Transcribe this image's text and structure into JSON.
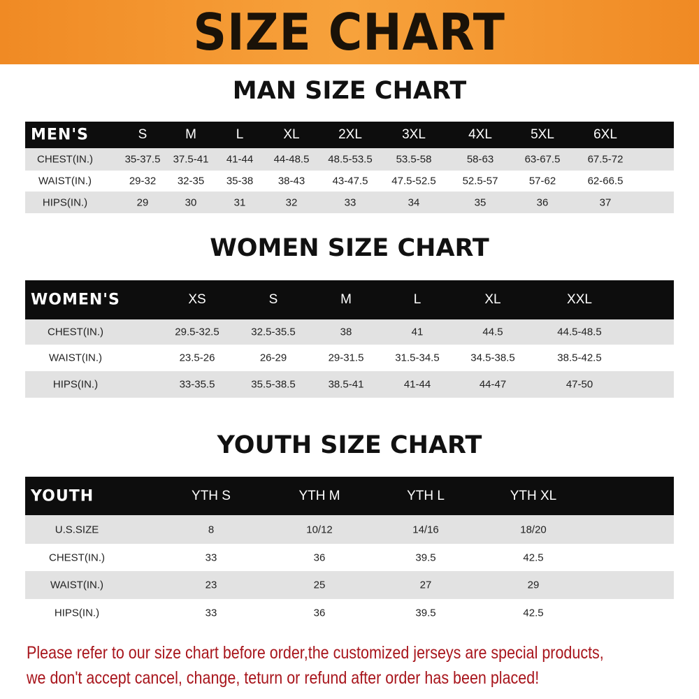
{
  "banner_title": "SIZE CHART",
  "men": {
    "title": "MAN SIZE CHART",
    "header": [
      "MEN'S",
      "S",
      "M",
      "L",
      "XL",
      "2XL",
      "3XL",
      "4XL",
      "5XL",
      "6XL"
    ],
    "rows": [
      [
        "CHEST(IN.)",
        "35-37.5",
        "37.5-41",
        "41-44",
        "44-48.5",
        "48.5-53.5",
        "53.5-58",
        "58-63",
        "63-67.5",
        "67.5-72"
      ],
      [
        "WAIST(IN.)",
        "29-32",
        "32-35",
        "35-38",
        "38-43",
        "43-47.5",
        "47.5-52.5",
        "52.5-57",
        "57-62",
        "62-66.5"
      ],
      [
        "HIPS(IN.)",
        "29",
        "30",
        "31",
        "32",
        "33",
        "34",
        "35",
        "36",
        "37"
      ]
    ]
  },
  "women": {
    "title": "WOMEN SIZE CHART",
    "header": [
      "WOMEN'S",
      "XS",
      "S",
      "M",
      "L",
      "XL",
      "XXL"
    ],
    "rows": [
      [
        "CHEST(IN.)",
        "29.5-32.5",
        "32.5-35.5",
        "38",
        "41",
        "44.5",
        "44.5-48.5"
      ],
      [
        "WAIST(IN.)",
        "23.5-26",
        "26-29",
        "29-31.5",
        "31.5-34.5",
        "34.5-38.5",
        "38.5-42.5"
      ],
      [
        "HIPS(IN.)",
        "33-35.5",
        "35.5-38.5",
        "38.5-41",
        "41-44",
        "44-47",
        "47-50"
      ]
    ]
  },
  "youth": {
    "title": "YOUTH SIZE CHART",
    "header": [
      "YOUTH",
      "YTH S",
      "YTH M",
      "YTH L",
      "YTH XL"
    ],
    "rows": [
      [
        "U.S.SIZE",
        "8",
        "10/12",
        "14/16",
        "18/20"
      ],
      [
        "CHEST(IN.)",
        "33",
        "36",
        "39.5",
        "42.5"
      ],
      [
        "WAIST(IN.)",
        "23",
        "25",
        "27",
        "29"
      ],
      [
        "HIPS(IN.)",
        "33",
        "36",
        "39.5",
        "42.5"
      ]
    ]
  },
  "notice": [
    "Please refer to our size chart before order,the customized jerseys are special products,",
    "we don't accept cancel, change, teturn or refund after order has been placed!"
  ],
  "colors": {
    "banner": "#f7a23c",
    "header_row": "#0d0d0d",
    "stripe": "#e2e2e2",
    "notice": "#a8151c"
  }
}
